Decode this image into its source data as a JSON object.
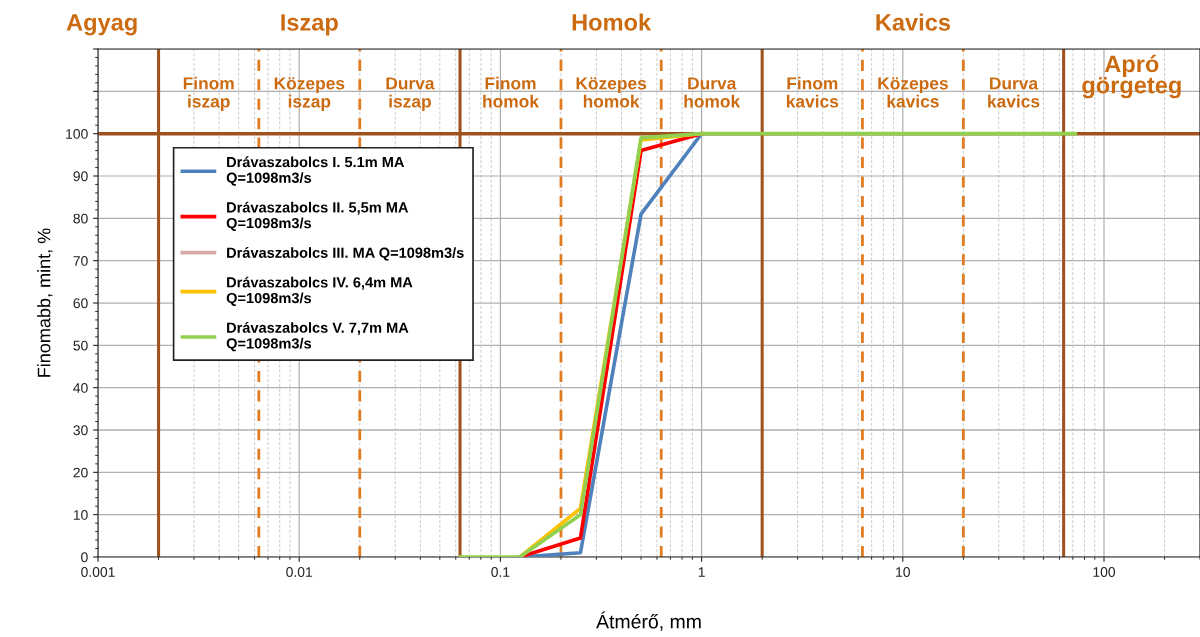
{
  "chart_data": {
    "type": "line",
    "xlabel": "Átmérő, mm",
    "ylabel": "Finomabb, mint, %",
    "log": "x",
    "xlim": [
      0.001,
      300
    ],
    "xticks": [
      0.001,
      0.01,
      0.1,
      1,
      10,
      100
    ],
    "ylim": [
      0,
      120
    ],
    "yticks": [
      0,
      10,
      20,
      30,
      40,
      50,
      60,
      70,
      80,
      90,
      100,
      {
        "value": 110,
        "label": null
      },
      {
        "value": 120,
        "label": null
      }
    ],
    "grid": true,
    "legend": "top left",
    "marker": "none",
    "line_style": "solid",
    "series": [
      {
        "name": "Drávaszabolcs I. 5.1m MA\nQ=1098m3/s",
        "color": "#4f81bd",
        "x": [
          0.125,
          0.25,
          0.5,
          1
        ],
        "values": [
          0,
          1,
          81,
          100
        ]
      },
      {
        "name": "Drávaszabolcs II. 5,5m MA\nQ=1098m3/s",
        "color": "#ff0000",
        "x": [
          0.125,
          0.25,
          0.5,
          1
        ],
        "values": [
          0,
          4.5,
          96,
          100
        ]
      },
      {
        "name": "Drávaszabolcs III. MA Q=1098m3/s",
        "color": "#d8a9a9"
      },
      {
        "name": "Drávaszabolcs IV. 6,4m MA\nQ=1098m3/s",
        "color": "#ffc000",
        "x": [
          0.125,
          0.25,
          0.5,
          1
        ],
        "values": [
          0,
          11.5,
          98.5,
          100
        ]
      },
      {
        "name": "Drávaszabolcs V. 7,7m MA\nQ=1098m3/s",
        "color": "#92d050",
        "x": [
          0.063,
          0.125,
          0.25,
          0.5,
          1,
          2,
          4,
          8,
          16,
          31.5,
          72
        ],
        "values": [
          0,
          0,
          10,
          99,
          100,
          100,
          100,
          100,
          100,
          100,
          100
        ]
      }
    ],
    "ref_lines": [
      {
        "axis": "y",
        "value": 100,
        "color": "#a0521e",
        "line_style": "solid"
      },
      {
        "axis": "x",
        "value": 0.002,
        "color": "#a0521e",
        "line_style": "solid"
      },
      {
        "axis": "x",
        "value": 0.063,
        "color": "#a0521e",
        "line_style": "solid"
      },
      {
        "axis": "x",
        "value": 2,
        "color": "#a0521e",
        "line_style": "solid"
      },
      {
        "axis": "x",
        "value": 63,
        "color": "#a0521e",
        "line_style": "solid"
      },
      {
        "axis": "x",
        "value": 0.0063,
        "color": "#e07b20",
        "line_style": "dashed"
      },
      {
        "axis": "x",
        "value": 0.02,
        "color": "#e07b20",
        "line_style": "dashed"
      },
      {
        "axis": "x",
        "value": 0.2,
        "color": "#e07b20",
        "line_style": "dashed"
      },
      {
        "axis": "x",
        "value": 0.63,
        "color": "#e07b20",
        "line_style": "dashed"
      },
      {
        "axis": "x",
        "value": 6.3,
        "color": "#e07b20",
        "line_style": "dashed"
      },
      {
        "axis": "x",
        "value": 20,
        "color": "#e07b20",
        "line_style": "dashed"
      }
    ],
    "annotations": [
      "Agyag",
      "Iszap",
      "Homok",
      "Kavics",
      "Apró\ngörgeteg",
      "Finom\niszap",
      "Közepes\niszap",
      "Durva\niszap",
      "Finom\nhomok",
      "Közepes\nhomok",
      "Durva\nhomok",
      "Finom\nkavics",
      "Közepes\nkavics",
      "Durva\nkavics"
    ]
  }
}
